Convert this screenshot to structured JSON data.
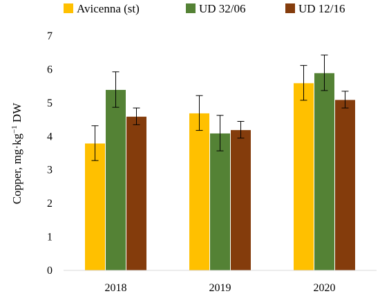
{
  "chart_data": {
    "type": "bar",
    "title": "",
    "xlabel": "",
    "ylabel": "Copper, mg·kg",
    "ylabel_superscript": "−1",
    "ylabel_suffix": " DW",
    "categories": [
      "2018",
      "2019",
      "2020"
    ],
    "ylim": [
      0,
      7
    ],
    "yticks": [
      "0",
      "1",
      "2",
      "3",
      "4",
      "5",
      "6",
      "7"
    ],
    "grid": false,
    "legend_position": "top",
    "series": [
      {
        "name": "Avicenna (st)",
        "color": "#FFC000",
        "values": [
          3.8,
          4.7,
          5.6
        ],
        "errors": [
          0.52,
          0.52,
          0.52
        ]
      },
      {
        "name": "UD 32/06",
        "color": "#548235",
        "values": [
          5.4,
          4.1,
          5.9
        ],
        "errors": [
          0.53,
          0.53,
          0.53
        ]
      },
      {
        "name": "UD 12/16",
        "color": "#843C0C",
        "values": [
          4.6,
          4.2,
          5.1
        ],
        "errors": [
          0.25,
          0.25,
          0.25
        ]
      }
    ]
  }
}
